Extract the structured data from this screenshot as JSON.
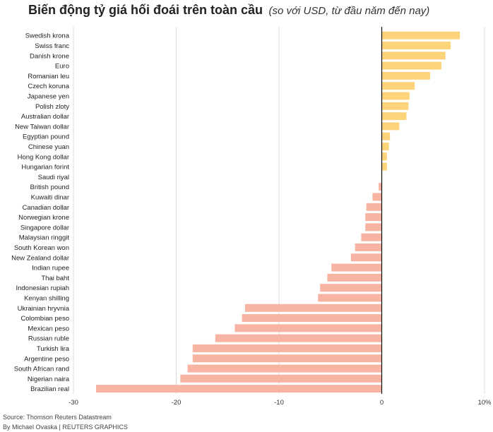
{
  "header": {
    "title": "Biến động tỷ giá hối đoái trên toàn cầu",
    "subtitle": "(so với USD, từ đầu năm đến nay)"
  },
  "footer": {
    "source": "Source: Thomson Reuters Datastream",
    "credit": "By Michael Ovaska | REUTERS GRAPHICS"
  },
  "colors": {
    "positive": "#fdd47a",
    "negative": "#f8b4a3",
    "zero_line": "#111111",
    "grid": "#dddddd"
  },
  "chart_data": {
    "type": "bar",
    "orientation": "horizontal",
    "title": "Biến động tỷ giá hối đoái trên toàn cầu",
    "subtitle": "(so với USD, từ đầu năm đến nay)",
    "xlim": [
      -30,
      10
    ],
    "x_ticks": [
      -30,
      -20,
      -10,
      0,
      10
    ],
    "x_tick_labels": [
      "-30",
      "-20",
      "-10",
      "0",
      "10%"
    ],
    "grid": true,
    "categories": [
      "Swedish krona",
      "Swiss franc",
      "Danish krone",
      "Euro",
      "Romanian leu",
      "Czech koruna",
      "Japanese yen",
      "Polish zloty",
      "Australian dollar",
      "New Taiwan dollar",
      "Egyptian pound",
      "Chinese yuan",
      "Hong Kong dollar",
      "Hungarian forint",
      "Saudi riyal",
      "British pound",
      "Kuwaiti dinar",
      "Canadian dollar",
      "Norwegian krone",
      "Singapore dollar",
      "Malaysian ringgit",
      "South Korean won",
      "New Zealand dollar",
      "Indian rupee",
      "Thai baht",
      "Indonesian rupiah",
      "Kenyan shilling",
      "Ukrainian hryvnia",
      "Colombian peso",
      "Mexican peso",
      "Russian ruble",
      "Turkish lira",
      "Argentine peso",
      "South African rand",
      "Nigerian naira",
      "Brazilian real"
    ],
    "values": [
      7.6,
      6.7,
      6.2,
      5.8,
      4.7,
      3.2,
      2.7,
      2.6,
      2.4,
      1.7,
      0.8,
      0.7,
      0.5,
      0.5,
      0.05,
      -0.3,
      -0.9,
      -1.5,
      -1.6,
      -1.6,
      -2.0,
      -2.6,
      -3.0,
      -4.9,
      -5.3,
      -6.0,
      -6.2,
      -13.3,
      -13.6,
      -14.3,
      -16.2,
      -18.4,
      -18.4,
      -18.9,
      -19.6,
      -27.8
    ]
  }
}
